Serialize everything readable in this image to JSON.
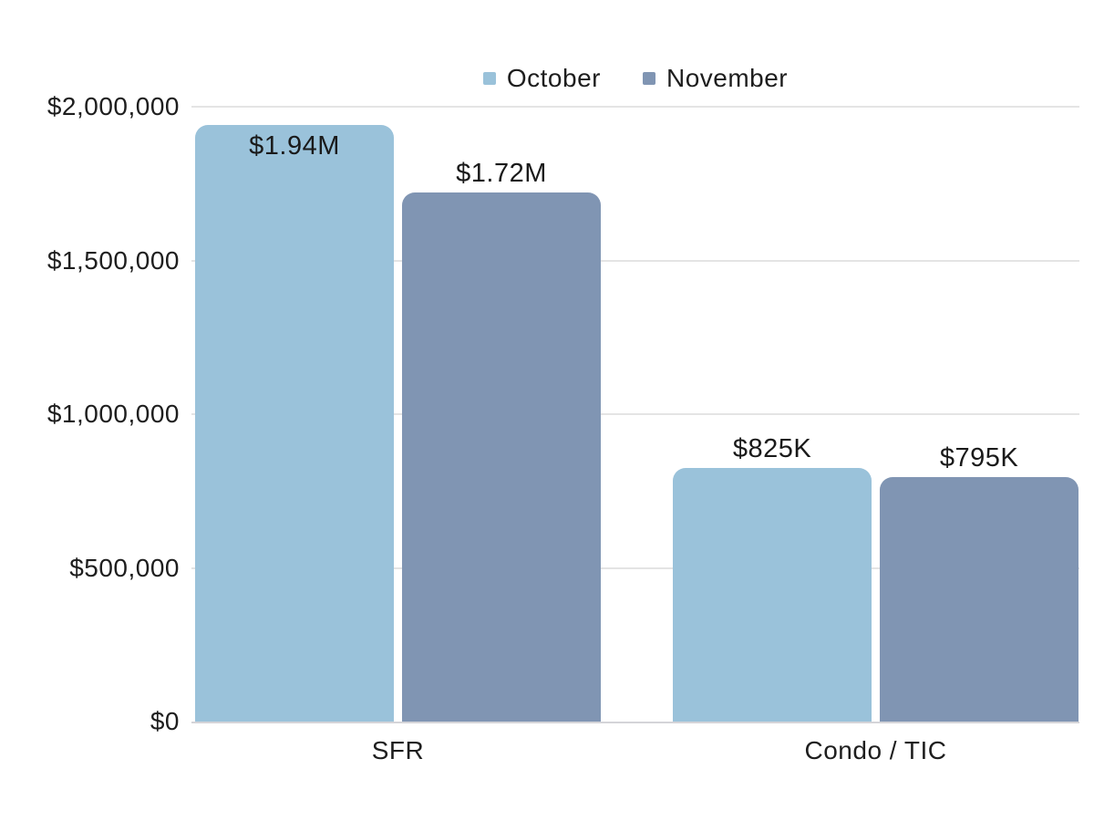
{
  "chart_data": {
    "type": "bar",
    "title": "",
    "xlabel": "",
    "ylabel": "",
    "categories": [
      "SFR",
      "Condo / TIC"
    ],
    "series": [
      {
        "name": "October",
        "color": "#9ac2da",
        "values": [
          1940000,
          825000
        ],
        "data_labels": [
          "$1.94M",
          "$825K"
        ]
      },
      {
        "name": "November",
        "color": "#8095b3",
        "values": [
          1720000,
          795000
        ],
        "data_labels": [
          "$1.72M",
          "$795K"
        ]
      }
    ],
    "y_ticks": [
      {
        "value": 2000000,
        "label": "$2,000,000"
      },
      {
        "value": 1500000,
        "label": "$1,500,000"
      },
      {
        "value": 1000000,
        "label": "$1,000,000"
      },
      {
        "value": 500000,
        "label": "$500,000"
      },
      {
        "value": 0,
        "label": "$0"
      }
    ],
    "ylim": [
      0,
      2000000
    ],
    "grid": true,
    "legend_position": "top",
    "colors": {
      "grid": "#e4e4e4",
      "axis": "#d4d4d8",
      "text": "#1e1e1e"
    }
  }
}
